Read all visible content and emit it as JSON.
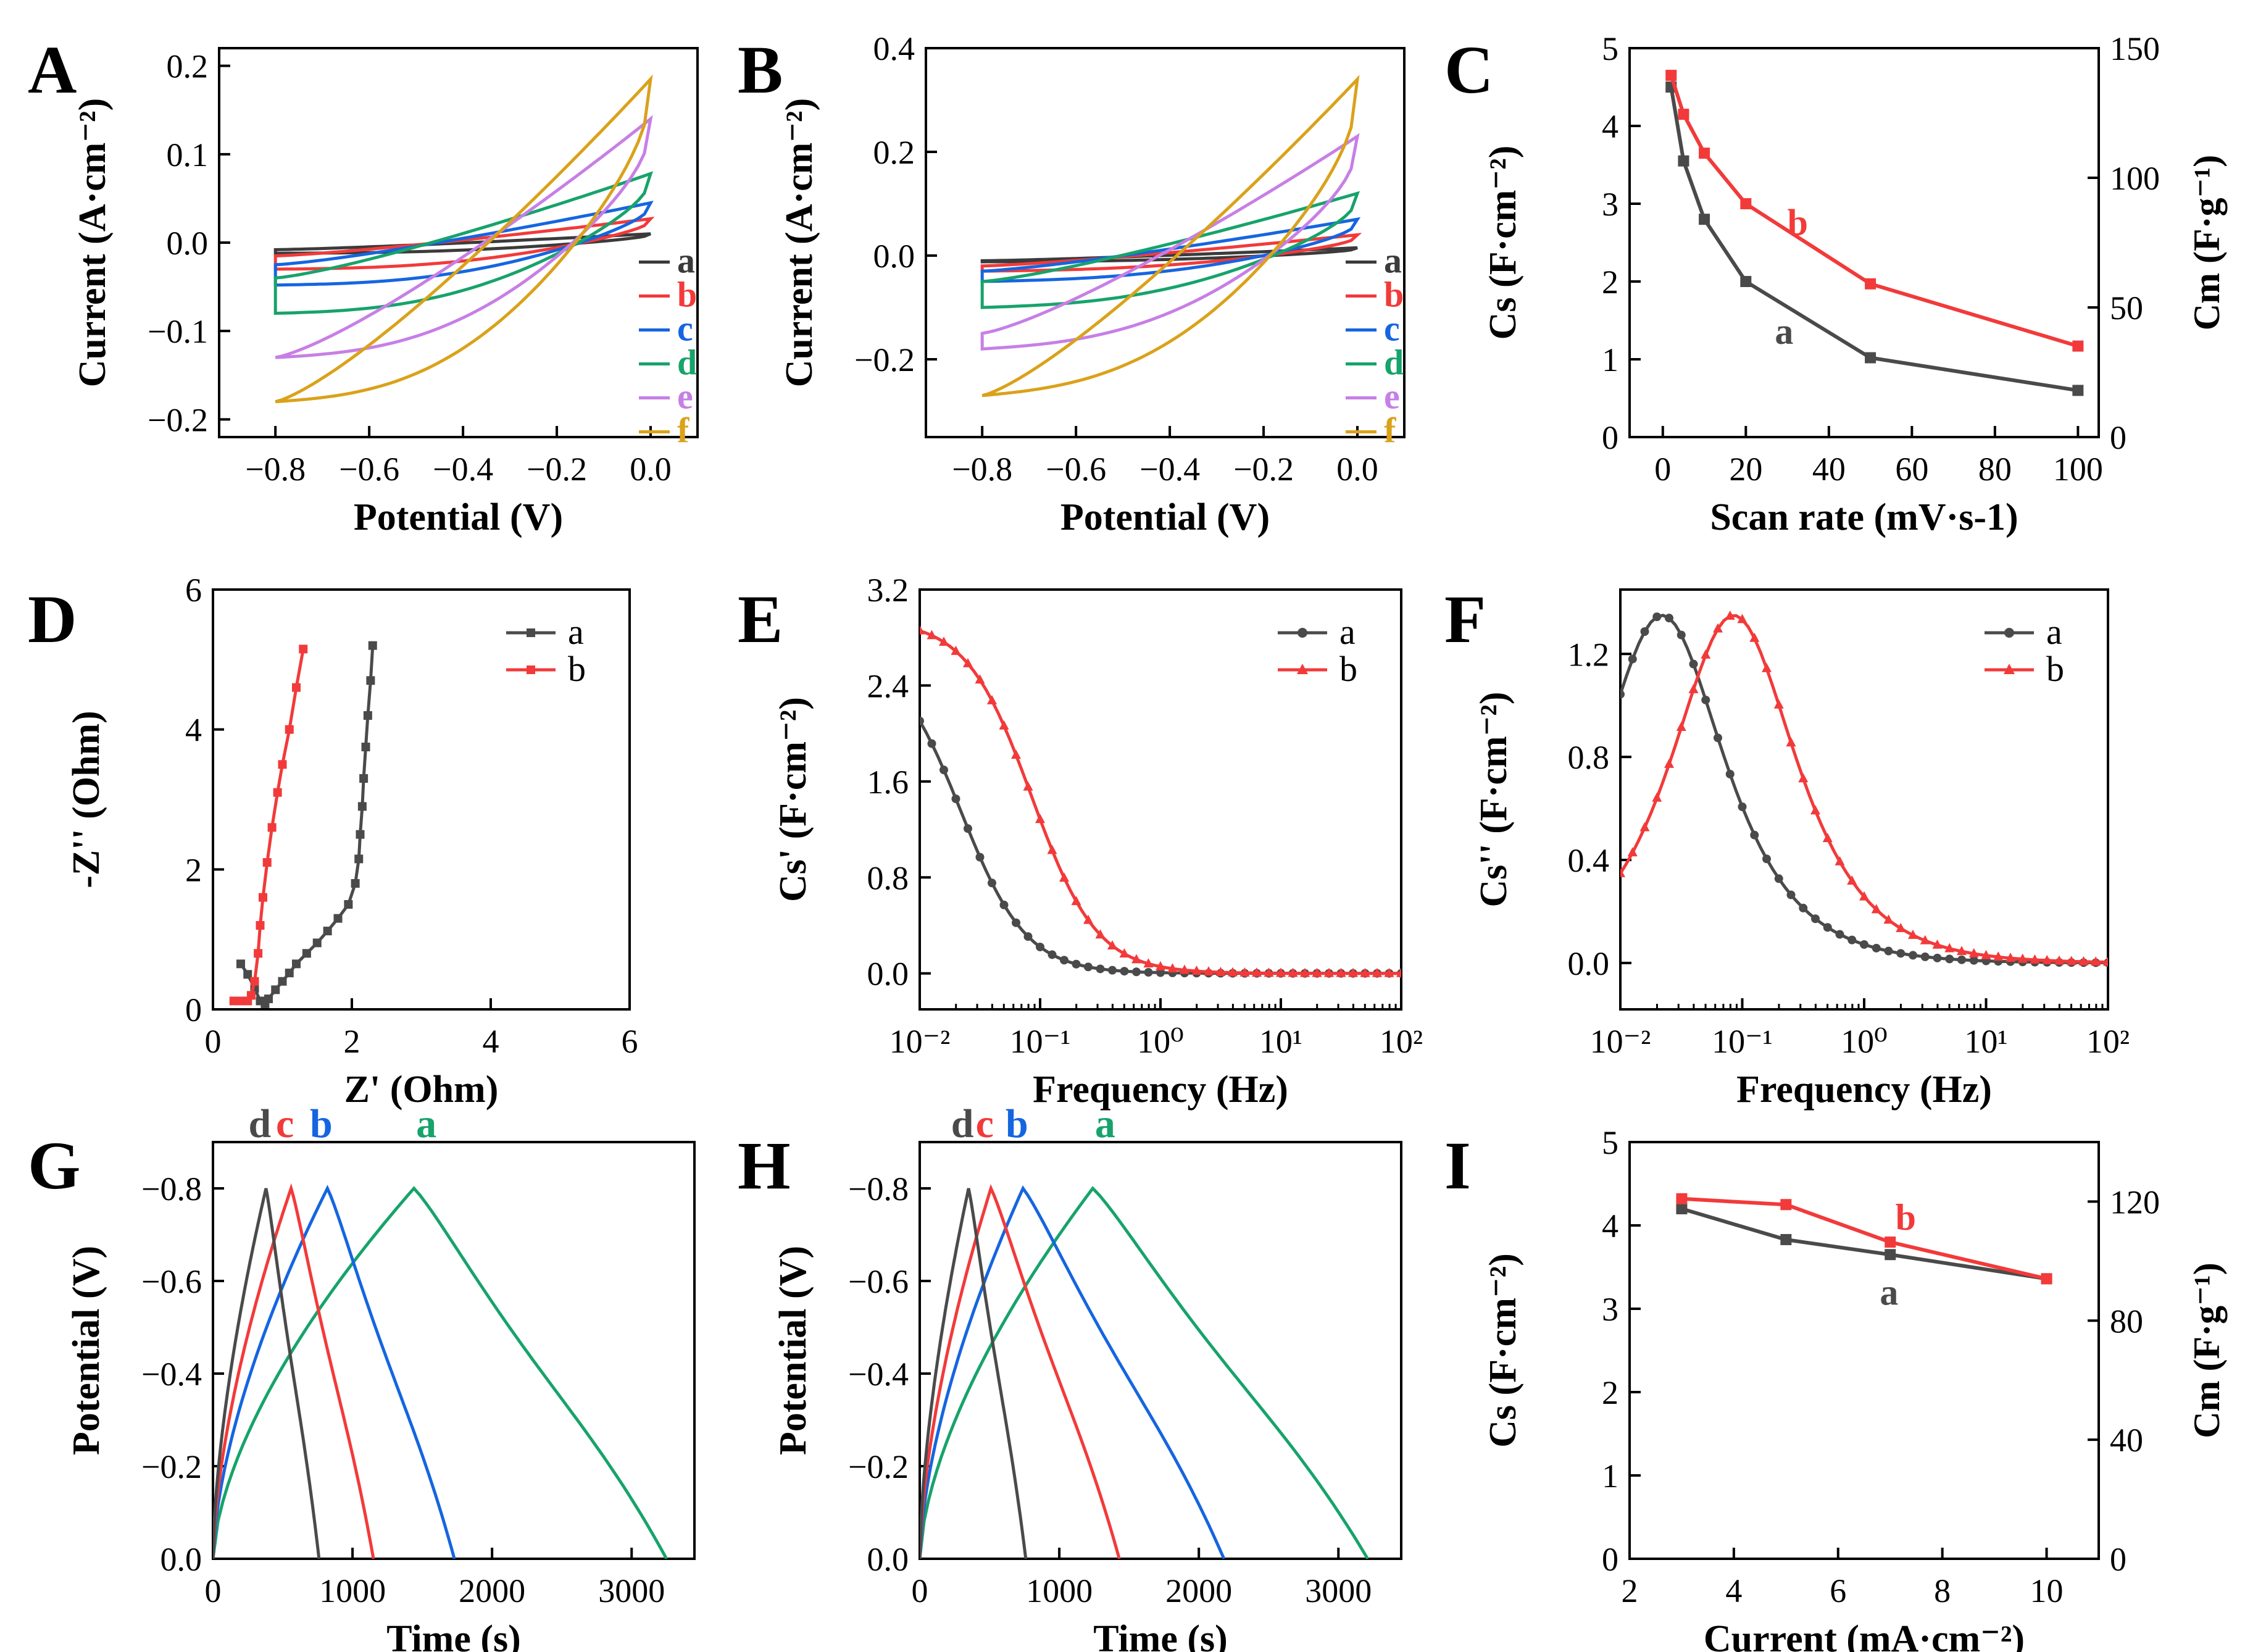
{
  "colors": {
    "a_cv": "#3b3b3b",
    "b_cv": "#f23a3a",
    "c_cv": "#1565e0",
    "d_cv": "#17a36b",
    "e_cv": "#c77fe6",
    "f_cv": "#daa21a",
    "black": "#4a4a4a",
    "red": "#f23a3a",
    "green": "#17a36b",
    "blue": "#1565e0"
  },
  "chart_data": [
    {
      "id": "A",
      "type": "line",
      "panel_label": "A",
      "xlabel": "Potential (V)",
      "ylabel": "Current (A·cm⁻²)",
      "xlim": [
        -0.92,
        0.1
      ],
      "ylim": [
        -0.22,
        0.22
      ],
      "xticks": [
        -0.8,
        -0.6,
        -0.4,
        -0.2,
        0.0
      ],
      "xticklabels": [
        "−0.8",
        "−0.6",
        "−0.4",
        "−0.2",
        "0.0"
      ],
      "yticks": [
        -0.2,
        -0.1,
        0.0,
        0.1,
        0.2
      ],
      "yticklabels": [
        "−0.2",
        "−0.1",
        "0.0",
        "0.1",
        "0.2"
      ],
      "series": [
        {
          "name": "a",
          "color": "#3b3b3b",
          "cv": [
            -0.008,
            0.01,
            0.012,
            -0.012,
            -0.01
          ]
        },
        {
          "name": "b",
          "color": "#f23a3a",
          "cv": [
            -0.015,
            0.027,
            0.028,
            -0.03,
            -0.025
          ]
        },
        {
          "name": "c",
          "color": "#1565e0",
          "cv": [
            -0.025,
            0.045,
            0.048,
            -0.048,
            -0.045
          ]
        },
        {
          "name": "d",
          "color": "#17a36b",
          "cv": [
            -0.04,
            0.078,
            0.08,
            -0.08,
            -0.078
          ]
        },
        {
          "name": "e",
          "color": "#c77fe6",
          "cv": [
            -0.13,
            0.14,
            0.14,
            -0.13,
            -0.13
          ]
        },
        {
          "name": "f",
          "color": "#daa21a",
          "cv": [
            -0.18,
            0.185,
            0.185,
            -0.18,
            -0.18
          ]
        }
      ],
      "legend": [
        "a",
        "b",
        "c",
        "d",
        "e",
        "f"
      ]
    },
    {
      "id": "B",
      "type": "line",
      "panel_label": "B",
      "xlabel": "Potential (V)",
      "ylabel": "Current (A·cm⁻²)",
      "xlim": [
        -0.92,
        0.1
      ],
      "ylim": [
        -0.35,
        0.4
      ],
      "xticks": [
        -0.8,
        -0.6,
        -0.4,
        -0.2,
        0.0
      ],
      "xticklabels": [
        "−0.8",
        "−0.6",
        "−0.4",
        "−0.2",
        "0.0"
      ],
      "yticks": [
        -0.2,
        0.0,
        0.2,
        0.4
      ],
      "yticklabels": [
        "−0.2",
        "0.0",
        "0.2",
        "0.4"
      ],
      "series": [
        {
          "name": "a",
          "color": "#3b3b3b",
          "cv": [
            -0.01,
            0.015,
            0.015,
            -0.012,
            -0.01
          ]
        },
        {
          "name": "b",
          "color": "#f23a3a",
          "cv": [
            -0.02,
            0.04,
            0.04,
            -0.03,
            -0.02
          ]
        },
        {
          "name": "c",
          "color": "#1565e0",
          "cv": [
            -0.03,
            0.07,
            0.07,
            -0.05,
            -0.03
          ]
        },
        {
          "name": "d",
          "color": "#17a36b",
          "cv": [
            -0.05,
            0.12,
            0.12,
            -0.1,
            -0.05
          ]
        },
        {
          "name": "e",
          "color": "#c77fe6",
          "cv": [
            -0.15,
            0.23,
            0.23,
            -0.18,
            -0.15
          ]
        },
        {
          "name": "f",
          "color": "#daa21a",
          "cv": [
            -0.27,
            0.34,
            0.34,
            -0.27,
            -0.27
          ]
        }
      ],
      "legend": [
        "a",
        "b",
        "c",
        "d",
        "e",
        "f"
      ]
    },
    {
      "id": "C",
      "type": "line",
      "panel_label": "C",
      "xlabel": "Scan rate (mV·s-1)",
      "ylabel": "Cs (F·cm⁻²)",
      "ylabel_right": "Cm (F·g⁻¹)",
      "xlim": [
        -8,
        105
      ],
      "ylim": [
        0,
        5
      ],
      "ylim_right": [
        0,
        150
      ],
      "xticks": [
        0,
        20,
        40,
        60,
        80,
        100
      ],
      "xticklabels": [
        "0",
        "20",
        "40",
        "60",
        "80",
        "100"
      ],
      "yticks": [
        0,
        1,
        2,
        3,
        4,
        5
      ],
      "yticklabels": [
        "0",
        "1",
        "2",
        "3",
        "4",
        "5"
      ],
      "yticks_right": [
        0,
        50,
        100,
        150
      ],
      "yticklabels_right": [
        "0",
        "50",
        "100",
        "150"
      ],
      "series": [
        {
          "name": "a",
          "color": "#4a4a4a",
          "x": [
            2,
            5,
            10,
            20,
            50,
            100
          ],
          "y": [
            4.5,
            3.55,
            2.8,
            2.0,
            1.02,
            0.6
          ]
        },
        {
          "name": "b",
          "color": "#f23a3a",
          "x": [
            2,
            5,
            10,
            20,
            50,
            100
          ],
          "y": [
            4.65,
            4.15,
            3.65,
            3.0,
            1.97,
            1.17
          ]
        }
      ],
      "annotations": [
        "a",
        "b"
      ]
    },
    {
      "id": "D",
      "type": "scatter",
      "panel_label": "D",
      "xlabel": "Z' (Ohm)",
      "ylabel": "-Z'' (Ohm)",
      "xlim": [
        0,
        6
      ],
      "ylim": [
        0,
        6
      ],
      "xticks": [
        0,
        2,
        4,
        6
      ],
      "xticklabels": [
        "0",
        "2",
        "4",
        "6"
      ],
      "yticks": [
        0,
        2,
        4,
        6
      ],
      "yticklabels": [
        "0",
        "2",
        "4",
        "6"
      ],
      "series": [
        {
          "name": "a",
          "color": "#4a4a4a",
          "x": [
            0.4,
            0.5,
            0.6,
            0.68,
            0.75,
            0.8,
            0.9,
            1.0,
            1.1,
            1.2,
            1.35,
            1.5,
            1.65,
            1.8,
            1.95,
            2.05,
            2.1,
            2.12,
            2.15,
            2.17,
            2.2,
            2.23,
            2.27,
            2.3
          ],
          "y": [
            0.65,
            0.5,
            0.3,
            0.12,
            0.08,
            0.15,
            0.28,
            0.4,
            0.52,
            0.65,
            0.8,
            0.95,
            1.12,
            1.3,
            1.5,
            1.8,
            2.15,
            2.5,
            2.9,
            3.3,
            3.75,
            4.2,
            4.7,
            5.2
          ]
        },
        {
          "name": "b",
          "color": "#f23a3a",
          "x": [
            0.3,
            0.4,
            0.5,
            0.55,
            0.6,
            0.65,
            0.68,
            0.72,
            0.78,
            0.85,
            0.93,
            1.0,
            1.1,
            1.2,
            1.3
          ],
          "y": [
            0.12,
            0.12,
            0.12,
            0.2,
            0.4,
            0.8,
            1.2,
            1.6,
            2.1,
            2.6,
            3.1,
            3.5,
            4.0,
            4.6,
            5.15
          ]
        }
      ],
      "legend": [
        "a",
        "b"
      ]
    },
    {
      "id": "E",
      "type": "line",
      "panel_label": "E",
      "xlabel": "Frequency (Hz)",
      "ylabel": "Cs' (F·cm⁻²)",
      "xlim_log10": [
        -2,
        2
      ],
      "ylim": [
        -0.3,
        3.2
      ],
      "xticklabels": [
        "10⁻²",
        "10⁻¹",
        "10⁰",
        "10¹",
        "10²"
      ],
      "yticks": [
        0.0,
        0.8,
        1.6,
        2.4,
        3.2
      ],
      "yticklabels": [
        "0.0",
        "0.8",
        "1.6",
        "2.4",
        "3.2"
      ],
      "series": [
        {
          "name": "a",
          "color": "#4a4a4a",
          "model": "cprime",
          "c0": 2.7,
          "f0": 0.022
        },
        {
          "name": "b",
          "color": "#f23a3a",
          "model": "cprime",
          "c0": 2.95,
          "f0": 0.085
        }
      ],
      "legend": [
        "a",
        "b"
      ]
    },
    {
      "id": "F",
      "type": "line",
      "panel_label": "F",
      "xlabel": "Frequency (Hz)",
      "ylabel": "Cs'' (F·cm⁻²)",
      "xlim_log10": [
        -2,
        2
      ],
      "ylim": [
        -0.18,
        1.45
      ],
      "xticklabels": [
        "10⁻²",
        "10⁻¹",
        "10⁰",
        "10¹",
        "10²"
      ],
      "yticks": [
        0.0,
        0.4,
        0.8,
        1.2
      ],
      "yticklabels": [
        "0.0",
        "0.4",
        "0.8",
        "1.2"
      ],
      "series": [
        {
          "name": "a",
          "color": "#4a4a4a",
          "model": "cdouble",
          "peak": 1.35,
          "f0": 0.022
        },
        {
          "name": "b",
          "color": "#f23a3a",
          "model": "cdouble",
          "peak": 1.35,
          "f0": 0.085
        }
      ],
      "legend": [
        "a",
        "b"
      ]
    },
    {
      "id": "G",
      "type": "line",
      "panel_label": "G",
      "xlabel": "Time (s)",
      "ylabel": "Potential (V)",
      "xlim": [
        0,
        3450
      ],
      "ylim": [
        0,
        -0.9
      ],
      "xticks": [
        0,
        1000,
        2000,
        3000
      ],
      "xticklabels": [
        "0",
        "1000",
        "2000",
        "3000"
      ],
      "yticks": [
        0,
        -0.2,
        -0.4,
        -0.6,
        -0.8
      ],
      "yticklabels": [
        "0.0",
        "−0.2",
        "−0.4",
        "−0.6",
        "−0.8"
      ],
      "series": [
        {
          "name": "a",
          "color": "#17a36b",
          "charge_end": 1440,
          "discharge_end": 3250
        },
        {
          "name": "b",
          "color": "#1565e0",
          "charge_end": 820,
          "discharge_end": 1730
        },
        {
          "name": "c",
          "color": "#f23a3a",
          "charge_end": 560,
          "discharge_end": 1150
        },
        {
          "name": "d",
          "color": "#4a4a4a",
          "charge_end": 380,
          "discharge_end": 760
        }
      ],
      "annotations": [
        "d",
        "c",
        "b",
        "a"
      ]
    },
    {
      "id": "H",
      "type": "line",
      "panel_label": "H",
      "xlabel": "Time (s)",
      "ylabel": "Potential (V)",
      "xlim": [
        0,
        3450
      ],
      "ylim": [
        0,
        -0.9
      ],
      "xticks": [
        0,
        1000,
        2000,
        3000
      ],
      "xticklabels": [
        "0",
        "1000",
        "2000",
        "3000"
      ],
      "yticks": [
        0,
        -0.2,
        -0.4,
        -0.6,
        -0.8
      ],
      "yticklabels": [
        "0.0",
        "−0.2",
        "−0.4",
        "−0.6",
        "−0.8"
      ],
      "series": [
        {
          "name": "a",
          "color": "#17a36b",
          "charge_end": 1240,
          "discharge_end": 3210
        },
        {
          "name": "b",
          "color": "#1565e0",
          "charge_end": 740,
          "discharge_end": 2180
        },
        {
          "name": "c",
          "color": "#f23a3a",
          "charge_end": 510,
          "discharge_end": 1430
        },
        {
          "name": "d",
          "color": "#4a4a4a",
          "charge_end": 350,
          "discharge_end": 760
        }
      ],
      "annotations": [
        "d",
        "c",
        "b",
        "a"
      ]
    },
    {
      "id": "I",
      "type": "line",
      "panel_label": "I",
      "xlabel": "Current (mA·cm⁻²)",
      "ylabel": "Cs (F·cm⁻²)",
      "ylabel_right": "Cm (F·g⁻¹)",
      "xlim": [
        2,
        11
      ],
      "ylim": [
        0,
        5
      ],
      "ylim_right": [
        0,
        140
      ],
      "xticks": [
        2,
        4,
        6,
        8,
        10
      ],
      "xticklabels": [
        "2",
        "4",
        "6",
        "8",
        "10"
      ],
      "yticks": [
        0,
        1,
        2,
        3,
        4,
        5
      ],
      "yticklabels": [
        "0",
        "1",
        "2",
        "3",
        "4",
        "5"
      ],
      "yticks_right": [
        0,
        40,
        80,
        120
      ],
      "yticklabels_right": [
        "0",
        "40",
        "80",
        "120"
      ],
      "series": [
        {
          "name": "a",
          "color": "#4a4a4a",
          "x": [
            3,
            5,
            7,
            10
          ],
          "y": [
            4.2,
            3.83,
            3.65,
            3.36
          ]
        },
        {
          "name": "b",
          "color": "#f23a3a",
          "x": [
            3,
            5,
            7,
            10
          ],
          "y": [
            4.32,
            4.25,
            3.8,
            3.36
          ]
        }
      ],
      "annotations": [
        "a",
        "b"
      ]
    }
  ]
}
